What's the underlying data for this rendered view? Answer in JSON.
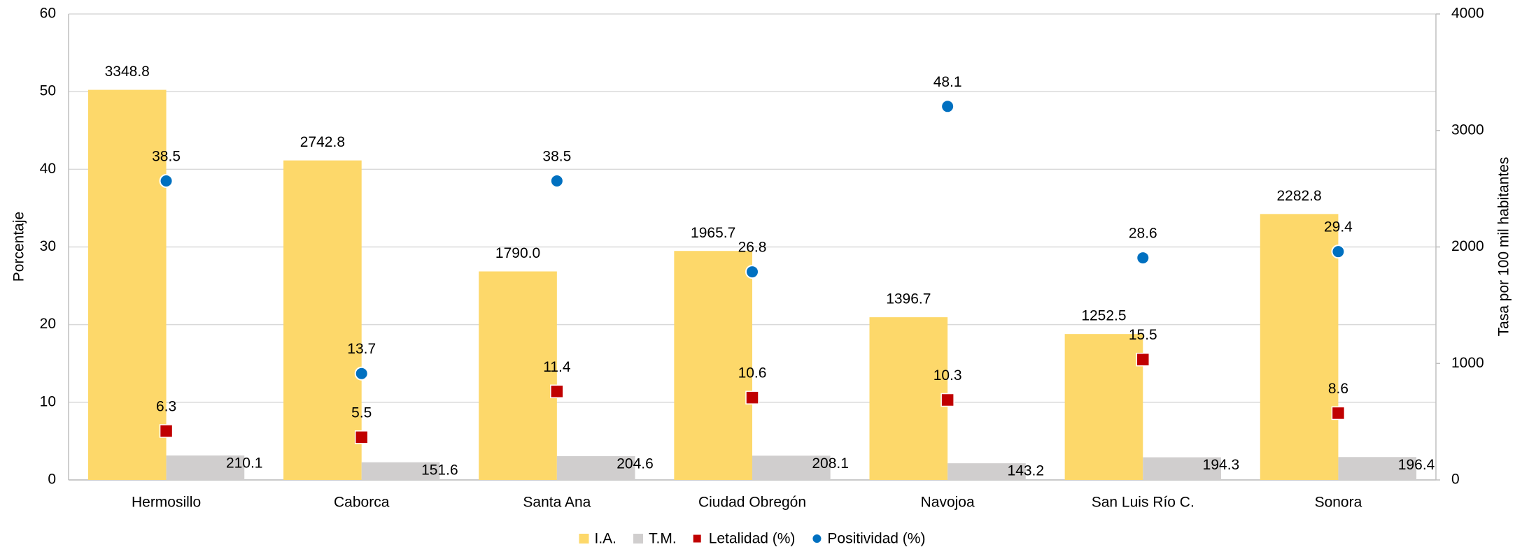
{
  "chart_data": {
    "type": "bar",
    "categories": [
      "Hermosillo",
      "Caborca",
      "Santa Ana",
      "Ciudad Obregón",
      "Navojoa",
      "San Luis Río C.",
      "Sonora"
    ],
    "ylabel": "Porcentaje",
    "y2label": "Tasa por 100 mil habitantes",
    "ylim": [
      0,
      60
    ],
    "yticks": [
      0,
      10,
      20,
      30,
      40,
      50,
      60
    ],
    "y2lim": [
      0,
      4000
    ],
    "y2ticks": [
      0,
      1000,
      2000,
      3000,
      4000
    ],
    "grid": true,
    "legend": "bottom",
    "series": [
      {
        "name": "I.A.",
        "type": "bar",
        "axis": "y2",
        "color": "#fdd86a",
        "values": [
          3348.8,
          2742.8,
          1790.0,
          1965.7,
          1396.7,
          1252.5,
          2282.8
        ],
        "value_labels": [
          "3348.8",
          "2742.8",
          "1790.0",
          "1965.7",
          "1396.7",
          "1252.5",
          "2282.8"
        ]
      },
      {
        "name": "T.M.",
        "type": "bar",
        "axis": "y2",
        "color": "#d0cece",
        "values": [
          210.1,
          151.6,
          204.6,
          208.1,
          143.2,
          194.3,
          196.4
        ],
        "value_labels": [
          "210.1",
          "151.6",
          "204.6",
          "208.1",
          "143.2",
          "194.3",
          "196.4"
        ]
      },
      {
        "name": "Letalidad (%)",
        "type": "scatter",
        "marker": "square",
        "color": "#c00000",
        "values": [
          6.3,
          5.5,
          11.4,
          10.6,
          10.3,
          15.5,
          8.6
        ],
        "value_labels": [
          "6.3",
          "5.5",
          "11.4",
          "10.6",
          "10.3",
          "15.5",
          "8.6"
        ]
      },
      {
        "name": "Positividad (%)",
        "type": "scatter",
        "marker": "circle",
        "color": "#0070c0",
        "values": [
          38.5,
          13.7,
          38.5,
          26.8,
          48.1,
          28.6,
          29.4
        ],
        "value_labels": [
          "38.5",
          "13.7",
          "38.5",
          "26.8",
          "48.1",
          "28.6",
          "29.4"
        ]
      }
    ]
  }
}
